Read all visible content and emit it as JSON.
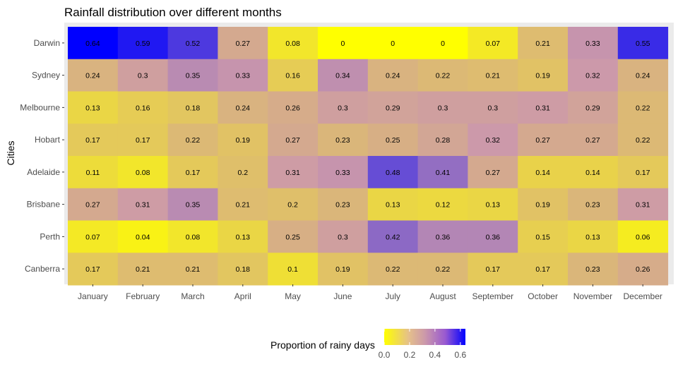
{
  "chart_data": {
    "type": "heatmap",
    "title": "Rainfall distribution over different months",
    "xlabel": "",
    "ylabel": "Cities",
    "x": [
      "January",
      "February",
      "March",
      "April",
      "May",
      "June",
      "July",
      "August",
      "September",
      "October",
      "November",
      "December"
    ],
    "y": [
      "Darwin",
      "Sydney",
      "Melbourne",
      "Hobart",
      "Adelaide",
      "Brisbane",
      "Perth",
      "Canberra"
    ],
    "values": [
      [
        0.64,
        0.59,
        0.52,
        0.27,
        0.08,
        0,
        0,
        0,
        0.07,
        0.21,
        0.33,
        0.55
      ],
      [
        0.24,
        0.3,
        0.35,
        0.33,
        0.16,
        0.34,
        0.24,
        0.22,
        0.21,
        0.19,
        0.32,
        0.24
      ],
      [
        0.13,
        0.16,
        0.18,
        0.24,
        0.26,
        0.3,
        0.29,
        0.3,
        0.3,
        0.31,
        0.29,
        0.22
      ],
      [
        0.17,
        0.17,
        0.22,
        0.19,
        0.27,
        0.23,
        0.25,
        0.28,
        0.32,
        0.27,
        0.27,
        0.22
      ],
      [
        0.11,
        0.08,
        0.17,
        0.2,
        0.31,
        0.33,
        0.48,
        0.41,
        0.27,
        0.14,
        0.14,
        0.17
      ],
      [
        0.27,
        0.31,
        0.35,
        0.21,
        0.2,
        0.23,
        0.13,
        0.12,
        0.13,
        0.19,
        0.23,
        0.31
      ],
      [
        0.07,
        0.04,
        0.08,
        0.13,
        0.25,
        0.3,
        0.42,
        0.36,
        0.36,
        0.15,
        0.13,
        0.06
      ],
      [
        0.17,
        0.21,
        0.21,
        0.18,
        0.1,
        0.19,
        0.22,
        0.22,
        0.17,
        0.17,
        0.23,
        0.26
      ]
    ],
    "legend": {
      "title": "Proportion of rainy days",
      "position": "bottom",
      "ticks": [
        "0.0",
        "0.2",
        "0.4",
        "0.6"
      ],
      "tick_values": [
        0,
        0.2,
        0.4,
        0.6
      ],
      "range": [
        0,
        0.64
      ]
    },
    "colors": {
      "low": "#ffff00",
      "mid": "#cc99aa",
      "high": "#0000ff",
      "panel_bg": "#ebebeb"
    },
    "grid": true
  }
}
